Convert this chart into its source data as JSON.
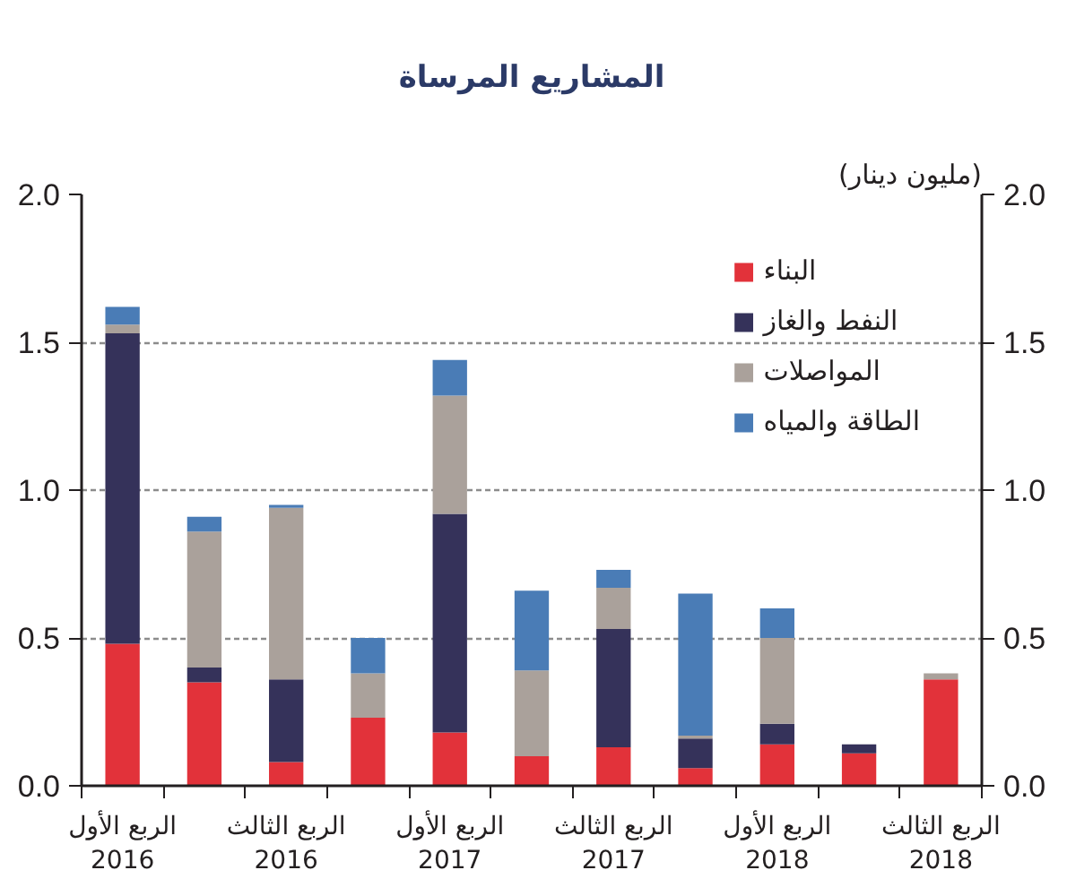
{
  "chart_data": {
    "type": "bar",
    "title": "المشاريع المرساة",
    "y2label": "(مليون دينار)",
    "categories": [
      "الربع الأول\n2016",
      null,
      "الربع الثالث\n2016",
      null,
      "الربع الأول\n2017",
      null,
      "الربع الثالث\n2017",
      null,
      "الربع الأول\n2018",
      null,
      "الربع الثالث\n2018"
    ],
    "stacked": true,
    "series": [
      {
        "name": "البناء",
        "color": "#e2323a",
        "values": [
          0.48,
          0.35,
          0.08,
          0.23,
          0.18,
          0.1,
          0.13,
          0.06,
          0.14,
          0.11,
          0.36
        ]
      },
      {
        "name": "النفط والغاز",
        "color": "#35325a",
        "values": [
          1.05,
          0.05,
          0.28,
          null,
          0.74,
          null,
          0.4,
          0.1,
          0.07,
          0.03,
          null
        ]
      },
      {
        "name": "المواصلات",
        "color": "#aaa19b",
        "values": [
          0.03,
          0.46,
          0.58,
          0.15,
          0.4,
          0.29,
          0.14,
          0.01,
          0.29,
          null,
          0.02
        ]
      },
      {
        "name": "الطاقة والمياه",
        "color": "#4a7cb6",
        "values": [
          0.06,
          0.05,
          0.01,
          0.12,
          0.12,
          0.27,
          0.06,
          0.48,
          0.1,
          null,
          null
        ]
      }
    ],
    "ylim": [
      0,
      2
    ],
    "yticks": [
      {
        "value": 0,
        "label": "0.0"
      },
      0.5,
      {
        "value": 1,
        "label": "1.0"
      },
      1.5,
      {
        "value": 2,
        "label": "2.0"
      }
    ],
    "y2lim": [
      0,
      2
    ],
    "y2ticks": [
      {
        "value": 0,
        "label": "0.0"
      },
      0.5,
      {
        "value": 1,
        "label": "1.0"
      },
      1.5,
      {
        "value": 2,
        "label": "2.0"
      }
    ],
    "grid": "y",
    "legend": "top right"
  }
}
